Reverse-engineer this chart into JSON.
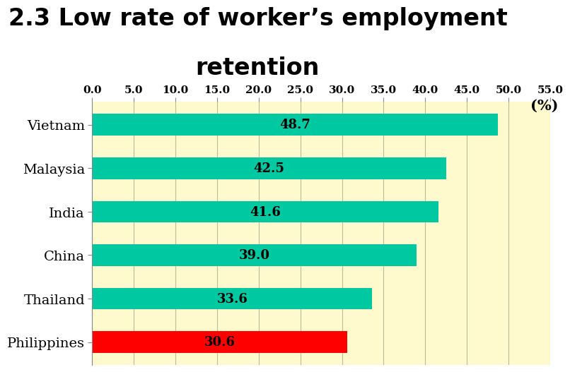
{
  "title_line1": "2.3 Low rate of worker’s employment",
  "title_line2": "retention",
  "unit_label": "(%)",
  "categories": [
    "Vietnam",
    "Malaysia",
    "India",
    "China",
    "Thailand",
    "Philippines"
  ],
  "values": [
    48.7,
    42.5,
    41.6,
    39.0,
    33.6,
    30.6
  ],
  "bar_colors": [
    "#00C8A0",
    "#00C8A0",
    "#00C8A0",
    "#00C8A0",
    "#00C8A0",
    "#FF0000"
  ],
  "figure_bg_color": "#FFFFFF",
  "plot_bg_color": "#FFFACD",
  "xlim": [
    0,
    55.0
  ],
  "xticks": [
    0.0,
    5.0,
    10.0,
    15.0,
    20.0,
    25.0,
    30.0,
    35.0,
    40.0,
    45.0,
    50.0,
    55.0
  ],
  "title_fontsize": 24,
  "label_fontsize": 14,
  "tick_fontsize": 11,
  "value_fontsize": 13,
  "unit_fontsize": 15
}
